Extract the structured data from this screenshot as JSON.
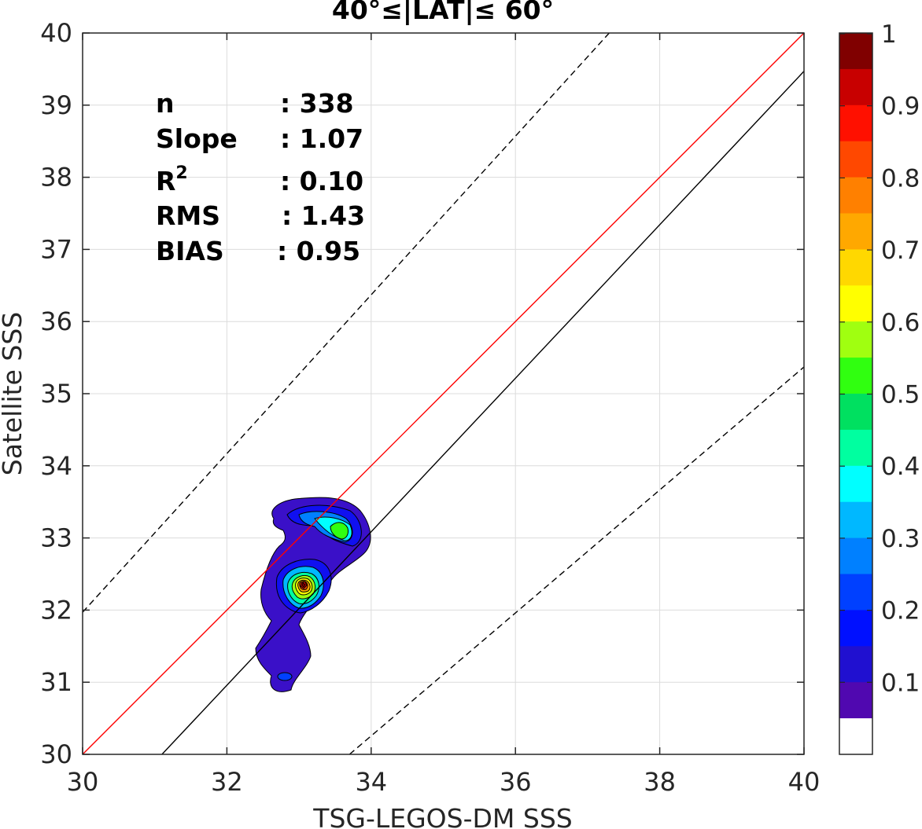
{
  "chart_data": {
    "type": "contour",
    "title": "40°≤|LAT|≤ 60°",
    "xlabel": "TSG-LEGOS-DM SSS",
    "ylabel": "Satellite SSS",
    "xlim": [
      30,
      40
    ],
    "ylim": [
      30,
      40
    ],
    "x_ticks": [
      "30",
      "32",
      "34",
      "36",
      "38",
      "40"
    ],
    "y_ticks": [
      "30",
      "31",
      "32",
      "33",
      "34",
      "35",
      "36",
      "37",
      "38",
      "39",
      "40"
    ],
    "grid": true,
    "stats": [
      {
        "label": "n",
        "value": ": 338"
      },
      {
        "label": "Slope",
        "value": ": 1.07"
      },
      {
        "label": "R",
        "sup": "2",
        "value": ": 0.10"
      },
      {
        "label": "RMS",
        "value": ": 1.43"
      },
      {
        "label": "BIAS",
        "value": ": 0.95"
      }
    ],
    "lines": [
      {
        "name": "one-to-one",
        "style": "solid",
        "color": "#ff0000",
        "points": [
          [
            30,
            30
          ],
          [
            40,
            40
          ]
        ]
      },
      {
        "name": "fit",
        "style": "solid",
        "color": "#000000",
        "points": [
          [
            31.1,
            30
          ],
          [
            40,
            39.47
          ]
        ]
      },
      {
        "name": "upper-bound",
        "style": "dashed",
        "color": "#000000",
        "points": [
          [
            30,
            31.97
          ],
          [
            37.3,
            40
          ]
        ]
      },
      {
        "name": "lower-bound",
        "style": "dashed",
        "color": "#000000",
        "points": [
          [
            33.7,
            30
          ],
          [
            40,
            35.37
          ]
        ]
      }
    ],
    "density_peaks": [
      {
        "x": 33.05,
        "y": 32.37,
        "value": 0.95
      },
      {
        "x": 33.55,
        "y": 33.1,
        "value": 0.55
      },
      {
        "x": 32.8,
        "y": 31.05,
        "value": 0.15
      }
    ],
    "colorbar": {
      "ticks": [
        "1",
        "0.9",
        "0.8",
        "0.7",
        "0.6",
        "0.5",
        "0.4",
        "0.3",
        "0.2",
        "0.1"
      ],
      "colors_top_to_bottom": [
        "#800000",
        "#c80000",
        "#ff1000",
        "#ff4800",
        "#ff8000",
        "#ffa800",
        "#ffd800",
        "#ffff00",
        "#a0ff10",
        "#30ff10",
        "#00e060",
        "#00ffa0",
        "#00ffff",
        "#00b8ff",
        "#0080ff",
        "#0040ff",
        "#0010ff",
        "#2010d0",
        "#5008b0",
        "#ffffff"
      ]
    }
  }
}
